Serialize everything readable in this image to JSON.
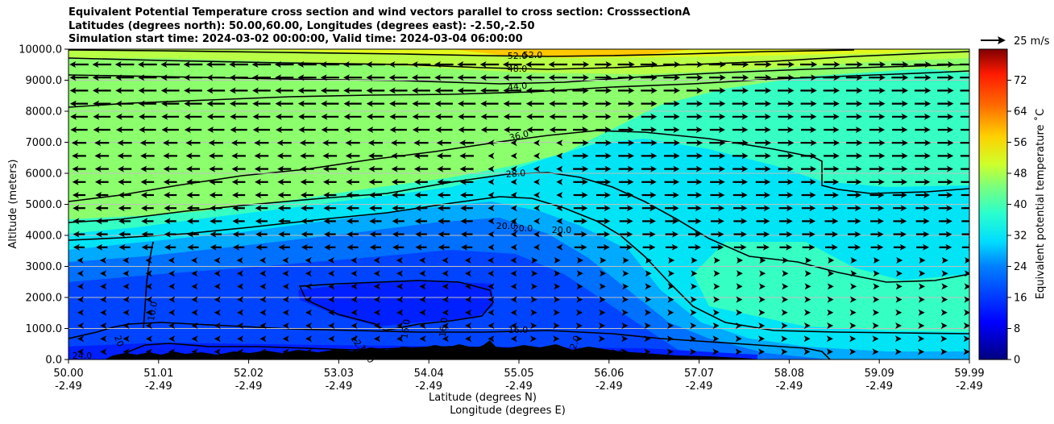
{
  "title": {
    "line1": "Equivalent Potential Temperature cross section and wind vectors parallel to cross section: CrosssectionA",
    "line2": "Latitudes (degrees north): 50.00,60.00, Longitudes (degrees east): -2.50,-2.50",
    "line3": "Simulation start time: 2024-03-02 00:00:00, Valid time: 2024-03-04 06:00:00"
  },
  "chart_data": {
    "type": "contourf",
    "ylabel": "Altitude (meters)",
    "xlabel_lat": "Latitude (degrees N)",
    "xlabel_lon": "Longitude (degrees E)",
    "ylim": [
      0,
      10000
    ],
    "yticks": [
      "0.0",
      "1000.0",
      "2000.0",
      "3000.0",
      "4000.0",
      "5000.0",
      "6000.0",
      "7000.0",
      "8000.0",
      "9000.0",
      "10000.0"
    ],
    "xticks_lat": [
      "50.00",
      "51.01",
      "52.02",
      "53.03",
      "54.04",
      "55.05",
      "56.06",
      "57.07",
      "58.08",
      "59.09",
      "59.99"
    ],
    "xticks_lon": [
      "-2.49",
      "-2.49",
      "-2.49",
      "-2.49",
      "-2.49",
      "-2.49",
      "-2.49",
      "-2.49",
      "-2.49",
      "-2.49",
      "-2.49"
    ],
    "colorbar": {
      "label": "Equivalent potential temperature ˚C",
      "range": [
        0,
        80
      ],
      "ticks": [
        "0",
        "8",
        "16",
        "24",
        "32",
        "40",
        "48",
        "56",
        "64",
        "72"
      ]
    },
    "quiver_key": "25 m/s",
    "contour_labels": [
      "52.0",
      "52.0",
      "48.0",
      "44.0",
      "36.0",
      "28.0",
      "20.0",
      "20.0",
      "20.0",
      "16.0",
      "16.0",
      "16.0",
      "16.0",
      "20",
      "24.0",
      "12.0",
      "12.0",
      "12.0",
      "8.0"
    ],
    "grid": "horizontal"
  }
}
